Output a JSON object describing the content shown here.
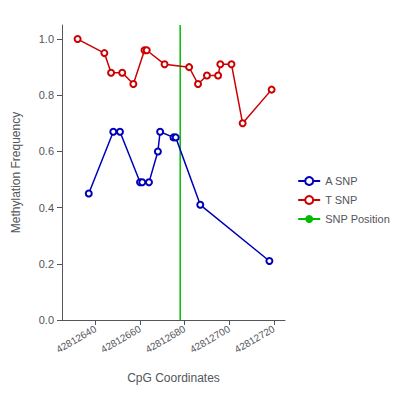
{
  "chart_data": {
    "type": "line",
    "title": "",
    "xlabel": "CpG Coordinates",
    "ylabel": "Methylation Frequency",
    "series": [
      {
        "name": "A SNP",
        "type": "line",
        "color": "#0000bb",
        "marker": "open_circle",
        "line_style": "solid",
        "x": [
          42812637,
          42812648,
          42812651,
          42812660,
          42812661,
          42812664,
          42812668,
          42812669,
          42812675,
          42812676,
          42812687,
          42812718
        ],
        "values": [
          0.45,
          0.67,
          0.67,
          0.49,
          0.49,
          0.49,
          0.6,
          0.67,
          0.65,
          0.65,
          0.41,
          0.21
        ]
      },
      {
        "name": "T SNP",
        "type": "line",
        "color": "#cc0000",
        "marker": "open_circle",
        "line_style": "solid",
        "x": [
          42812632,
          42812644,
          42812647,
          42812652,
          42812657,
          42812662,
          42812663,
          42812671,
          42812682,
          42812686,
          42812690,
          42812695,
          42812696,
          42812701,
          42812706,
          42812719
        ],
        "values": [
          1.0,
          0.95,
          0.88,
          0.88,
          0.84,
          0.96,
          0.96,
          0.91,
          0.9,
          0.84,
          0.87,
          0.87,
          0.91,
          0.91,
          0.7,
          0.82
        ]
      },
      {
        "name": "SNP Position",
        "type": "vline",
        "color": "#00bb00",
        "line_style": "solid",
        "x": [
          42812678
        ]
      }
    ],
    "xlim": [
      42812625,
      42812725
    ],
    "xticks": [
      42812640,
      42812660,
      42812680,
      42812700,
      42812720
    ],
    "ylim": [
      0.0,
      1.05
    ],
    "yticks": [
      {
        "value": 0.0,
        "label": "0.0"
      },
      {
        "value": 0.2,
        "label": "0.2"
      },
      {
        "value": 0.4,
        "label": "0.4"
      },
      {
        "value": 0.6,
        "label": "0.6"
      },
      {
        "value": 0.8,
        "label": "0.8"
      },
      {
        "value": 1.0,
        "label": "1.0"
      }
    ],
    "grid": false,
    "legend": "center right"
  }
}
